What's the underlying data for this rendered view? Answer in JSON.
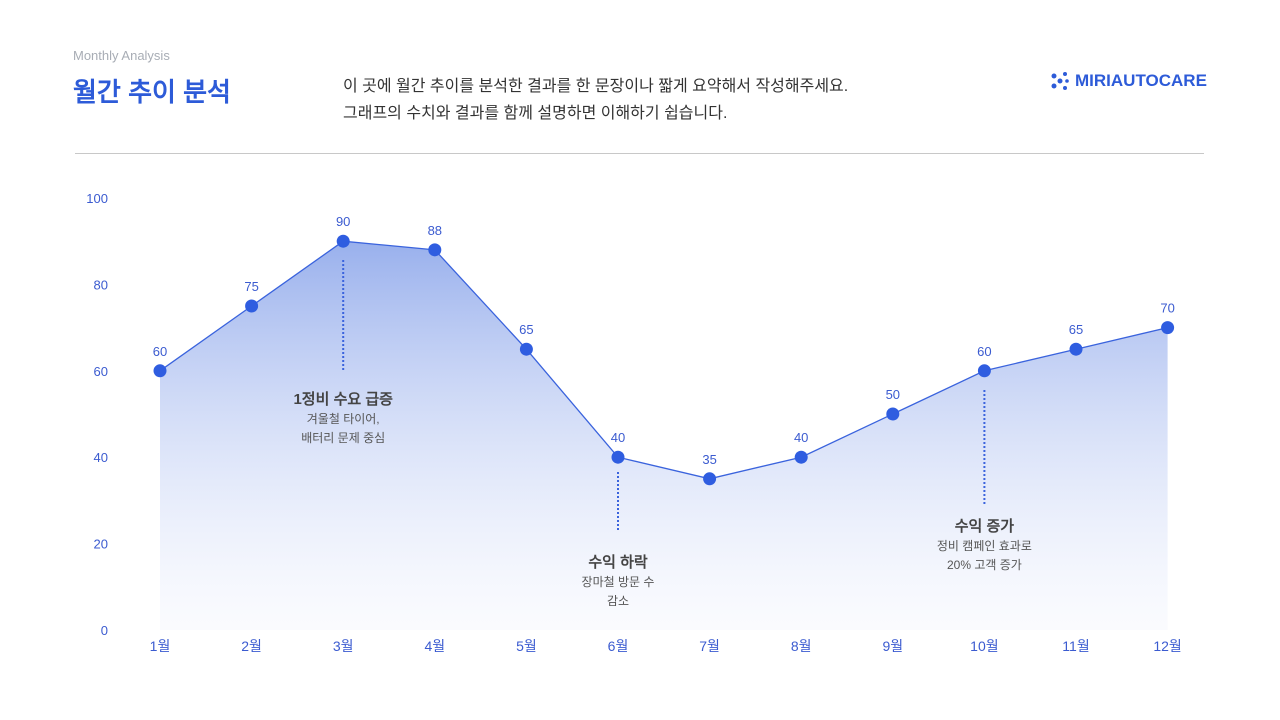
{
  "header": {
    "subtitle": "Monthly Analysis",
    "title": "월간 추이 분석",
    "summary": [
      "이 곳에 월간 추이를 분석한 결과를 한 문장이나 짧게 요약해서 작성해주세요.",
      "그래프의 수치와 결과를 함께 설명하면 이해하기 쉽습니다."
    ],
    "logo": "MIRIAUTOCARE"
  },
  "colors": {
    "accent": "#2d5bd8",
    "line": "#3a63dd",
    "point": "#2f5de0"
  },
  "chart_data": {
    "type": "area",
    "categories": [
      "1월",
      "2월",
      "3월",
      "4월",
      "5월",
      "6월",
      "7월",
      "8월",
      "9월",
      "10월",
      "11월",
      "12월"
    ],
    "values": [
      60,
      75,
      90,
      88,
      65,
      40,
      35,
      40,
      50,
      60,
      65,
      70
    ],
    "ylim": [
      0,
      100
    ],
    "yticks": [
      0,
      20,
      40,
      60,
      80,
      100
    ],
    "grid": false,
    "annotations": [
      {
        "category": "3월",
        "title": "1정비 수요 급증",
        "lines": [
          "겨울철 타이어,",
          "배터리 문제 중심"
        ]
      },
      {
        "category": "6월",
        "title": "수익 하락",
        "lines": [
          "장마철 방문 수",
          "감소"
        ]
      },
      {
        "category": "10월",
        "title": "수익 증가",
        "lines": [
          "정비 캠페인 효과로",
          "20% 고객 증가"
        ]
      }
    ]
  }
}
